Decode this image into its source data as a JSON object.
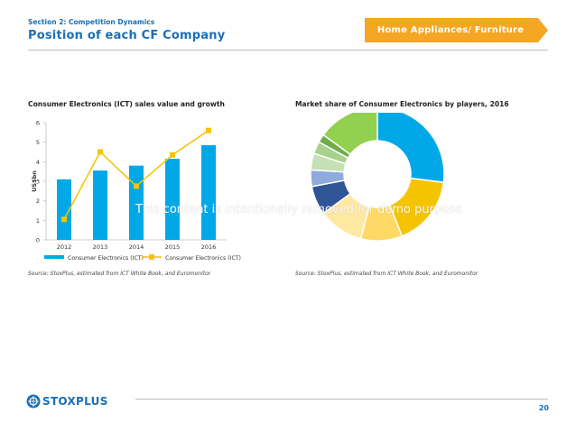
{
  "header": {
    "section": "Section 2: Competition Dynamics",
    "title": "Position of each CF Company",
    "tag": "Home Appliances/ Furniture"
  },
  "colors": {
    "brand_blue": "#1a6fb5",
    "tag_orange": "#f5a623",
    "bar": "#00a8e8",
    "line": "#f5c400"
  },
  "chart_data": [
    {
      "type": "bar",
      "title": "Consumer Electronics (ICT) sales value and growth",
      "categories": [
        "2012",
        "2013",
        "2014",
        "2015",
        "2016"
      ],
      "ylabel": "US$bn",
      "ylim": [
        0,
        6
      ],
      "yticks": [
        "0",
        "1",
        "2",
        "3",
        "4",
        "5",
        "6"
      ],
      "series": [
        {
          "name": "Consumer Electronics (ICT)",
          "kind": "bar",
          "values": [
            3.1,
            3.55,
            3.8,
            4.15,
            4.85
          ]
        },
        {
          "name": "Consumer Electronics (ICT)",
          "kind": "line",
          "values": [
            1.05,
            4.5,
            2.75,
            4.35,
            5.6
          ]
        }
      ],
      "legend_position": "bottom",
      "source": "Source: StoxPlus, estimated from ICT White Book, and Euromonitor"
    },
    {
      "type": "pie",
      "title": "Market share of Consumer Electronics by players, 2016",
      "hole": true,
      "values": [
        27,
        17,
        10,
        11,
        7,
        4,
        4,
        3,
        2,
        15
      ],
      "colors": [
        "#00a8e8",
        "#f5c400",
        "#ffd966",
        "#ffe8a0",
        "#2f5597",
        "#8faadc",
        "#c5e0b4",
        "#a9d18e",
        "#70ad47",
        "#92d050"
      ],
      "source": "Source: StoxPlus, estimated from ICT White Book, and Euromonitor"
    }
  ],
  "watermark": "This content is intentionally removed for demo purpose",
  "footer": {
    "logo_text": "STOXPLUS",
    "page_number": "20"
  }
}
